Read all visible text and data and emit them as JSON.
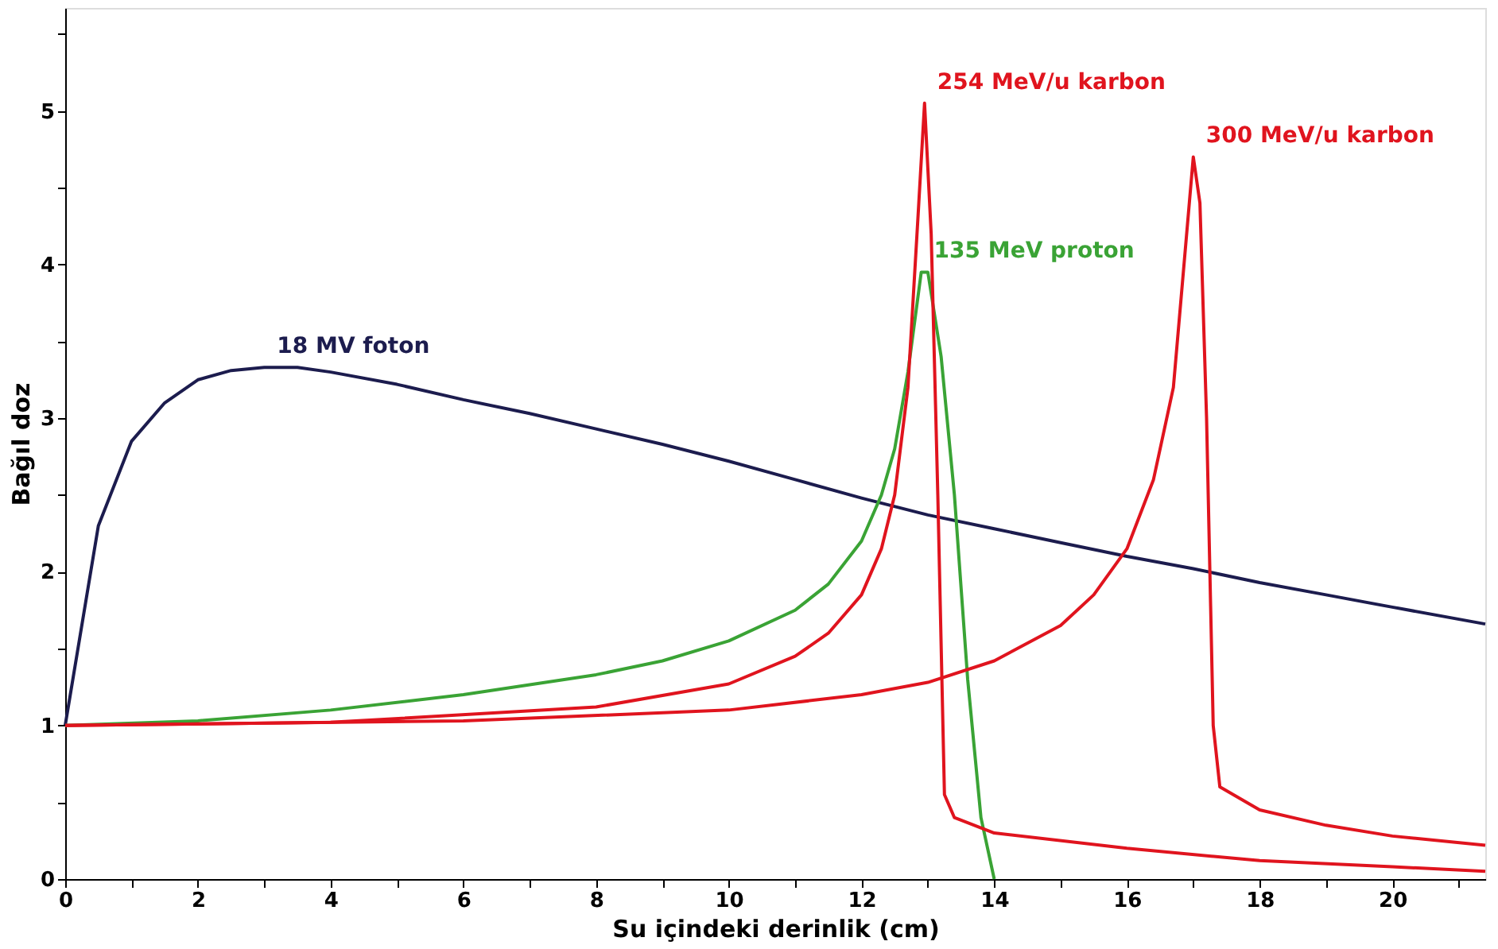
{
  "chart_data": {
    "type": "line",
    "xlabel": "Su içindeki derinlik (cm)",
    "ylabel": "Bağıl doz",
    "xlim": [
      0,
      21.4
    ],
    "ylim": [
      0,
      5.67
    ],
    "xticks": [
      0,
      {
        "value": 1,
        "label": null
      },
      2,
      {
        "value": 3,
        "label": null
      },
      4,
      {
        "value": 5,
        "label": null
      },
      6,
      {
        "value": 7,
        "label": null
      },
      8,
      {
        "value": 9,
        "label": null
      },
      10,
      {
        "value": 11,
        "label": null
      },
      12,
      {
        "value": 13,
        "label": null
      },
      14,
      {
        "value": 15,
        "label": null
      },
      16,
      {
        "value": 17,
        "label": null
      },
      18,
      {
        "value": 19,
        "label": null
      },
      20,
      {
        "value": 21,
        "label": null
      }
    ],
    "yticks": [
      0,
      {
        "value": 0.5,
        "label": null
      },
      1,
      {
        "value": 1.5,
        "label": null
      },
      2,
      {
        "value": 2.5,
        "label": null
      },
      3,
      {
        "value": 3.5,
        "label": null
      },
      4,
      {
        "value": 4.5,
        "label": null
      },
      5,
      {
        "value": 5.5,
        "label": null
      }
    ],
    "grid": false,
    "legend": false,
    "marker": "none",
    "line_style": "solid",
    "series": [
      {
        "name": "18 MV foton",
        "color": "#1c1c4e",
        "x": [
          0,
          0.5,
          1,
          1.5,
          2,
          2.5,
          3,
          3.5,
          4,
          5,
          6,
          7,
          8,
          9,
          10,
          11,
          12,
          13,
          14,
          15,
          16,
          17,
          18,
          19,
          20,
          21.4
        ],
        "values": [
          1,
          2.3,
          2.85,
          3.1,
          3.25,
          3.31,
          3.33,
          3.33,
          3.3,
          3.22,
          3.12,
          3.03,
          2.93,
          2.83,
          2.72,
          2.6,
          2.48,
          2.37,
          2.28,
          2.19,
          2.1,
          2.02,
          1.93,
          1.85,
          1.77,
          1.66
        ]
      },
      {
        "name": "135 MeV proton",
        "color": "#3aa335",
        "x": [
          0,
          2,
          4,
          6,
          8,
          9,
          10,
          11,
          11.5,
          12,
          12.3,
          12.5,
          12.7,
          12.9,
          13.0,
          13.2,
          13.4,
          13.6,
          13.8,
          14.0
        ],
        "values": [
          1,
          1.03,
          1.1,
          1.2,
          1.33,
          1.42,
          1.55,
          1.75,
          1.92,
          2.2,
          2.5,
          2.8,
          3.3,
          3.95,
          3.95,
          3.4,
          2.5,
          1.3,
          0.4,
          0
        ]
      },
      {
        "name": "254 MeV/u karbon",
        "color": "#e0141e",
        "x": [
          0,
          4,
          8,
          10,
          11,
          11.5,
          12,
          12.3,
          12.5,
          12.7,
          12.85,
          12.95,
          13.05,
          13.15,
          13.25,
          13.4,
          14,
          16,
          18,
          20,
          21.4
        ],
        "values": [
          1,
          1.02,
          1.12,
          1.27,
          1.45,
          1.6,
          1.85,
          2.15,
          2.5,
          3.2,
          4.3,
          5.05,
          4.2,
          2.5,
          0.55,
          0.4,
          0.3,
          0.2,
          0.12,
          0.08,
          0.05
        ]
      },
      {
        "name": "300 MeV/u karbon",
        "color": "#e0141e",
        "x": [
          0,
          6,
          10,
          12,
          13,
          14,
          15,
          15.5,
          16,
          16.4,
          16.7,
          16.9,
          17.0,
          17.1,
          17.2,
          17.3,
          17.4,
          18,
          19,
          20,
          21.4
        ],
        "values": [
          1,
          1.03,
          1.1,
          1.2,
          1.28,
          1.42,
          1.65,
          1.85,
          2.15,
          2.6,
          3.2,
          4.2,
          4.7,
          4.4,
          3.0,
          1.0,
          0.6,
          0.45,
          0.35,
          0.28,
          0.22
        ]
      }
    ]
  }
}
